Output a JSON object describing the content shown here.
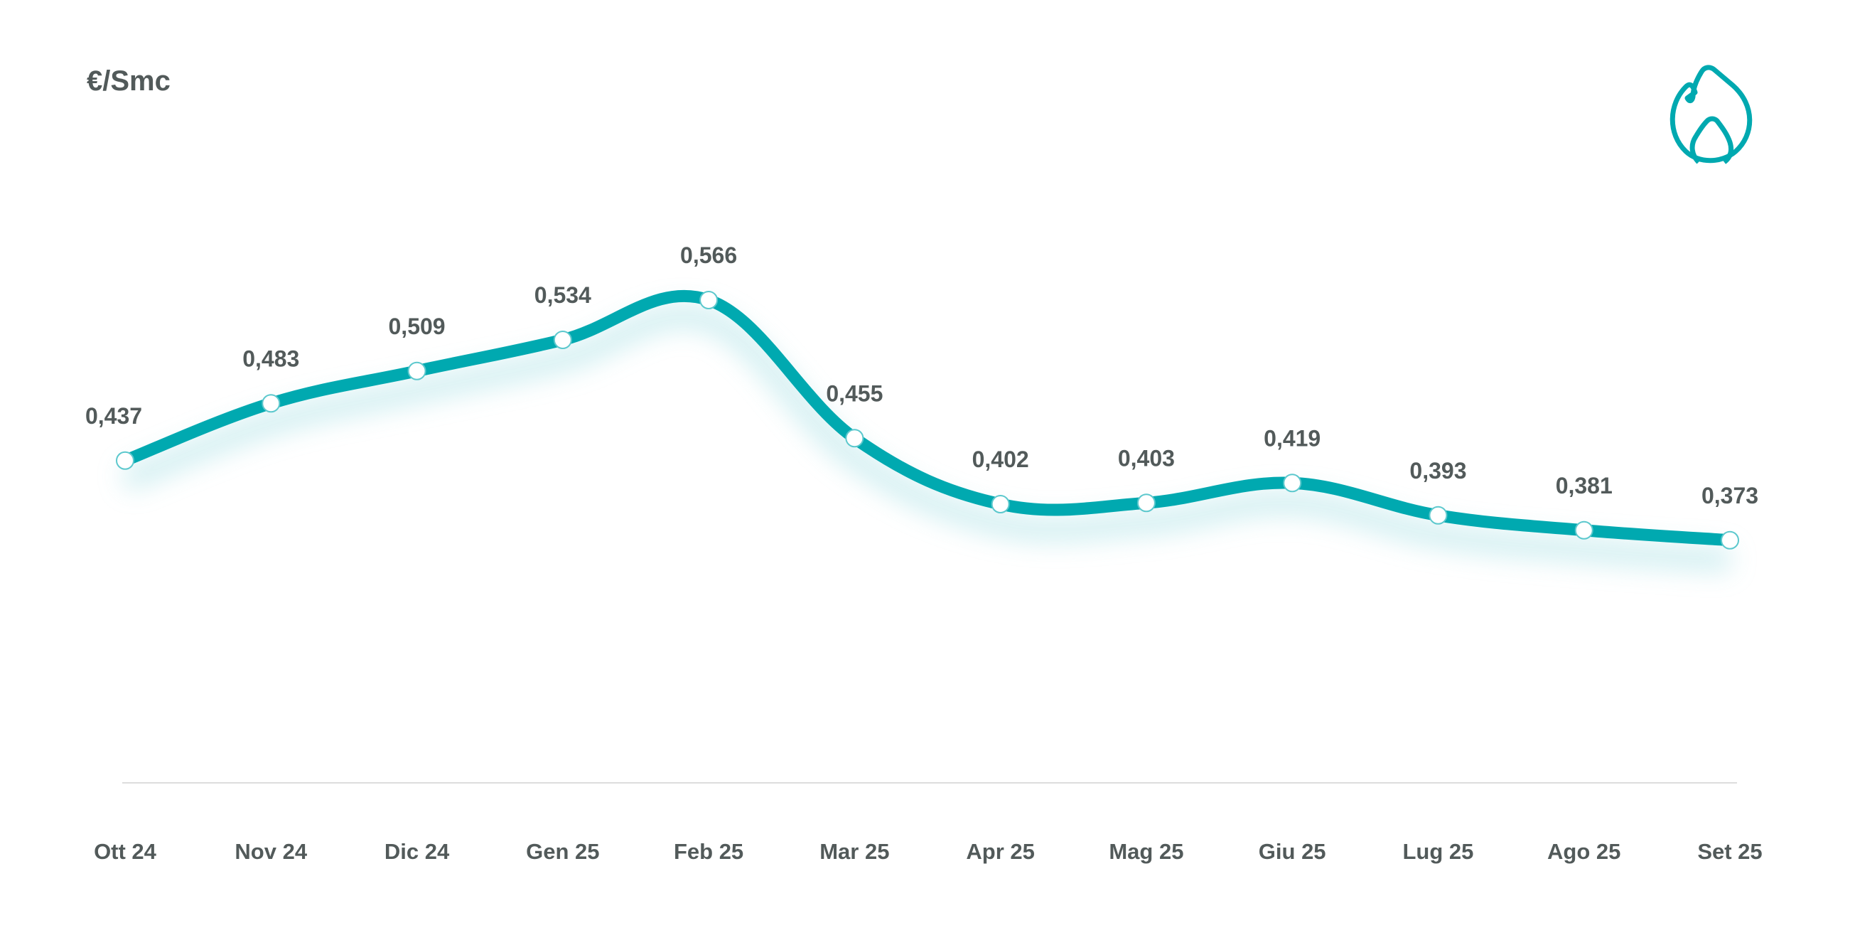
{
  "chart_data": {
    "type": "line",
    "title": "",
    "ylabel": "€/Smc",
    "xlabel": "",
    "categories": [
      "Ott 24",
      "Nov 24",
      "Dic 24",
      "Gen 25",
      "Feb 25",
      "Mar 25",
      "Apr 25",
      "Mag 25",
      "Giu 25",
      "Lug 25",
      "Ago 25",
      "Set 25"
    ],
    "values": [
      0.437,
      0.483,
      0.509,
      0.534,
      0.566,
      0.455,
      0.402,
      0.403,
      0.419,
      0.393,
      0.381,
      0.373
    ],
    "value_labels": [
      "0,437",
      "0,483",
      "0,509",
      "0,534",
      "0,566",
      "0,455",
      "0,402",
      "0,403",
      "0,419",
      "0,393",
      "0,381",
      "0,373"
    ],
    "ylim": [
      0.3,
      0.6
    ],
    "grid": false,
    "legend": "none",
    "colors": {
      "line": "#00a9b0",
      "text": "#525a5a",
      "baseline": "#dddddd"
    }
  },
  "icon": "flame-icon"
}
